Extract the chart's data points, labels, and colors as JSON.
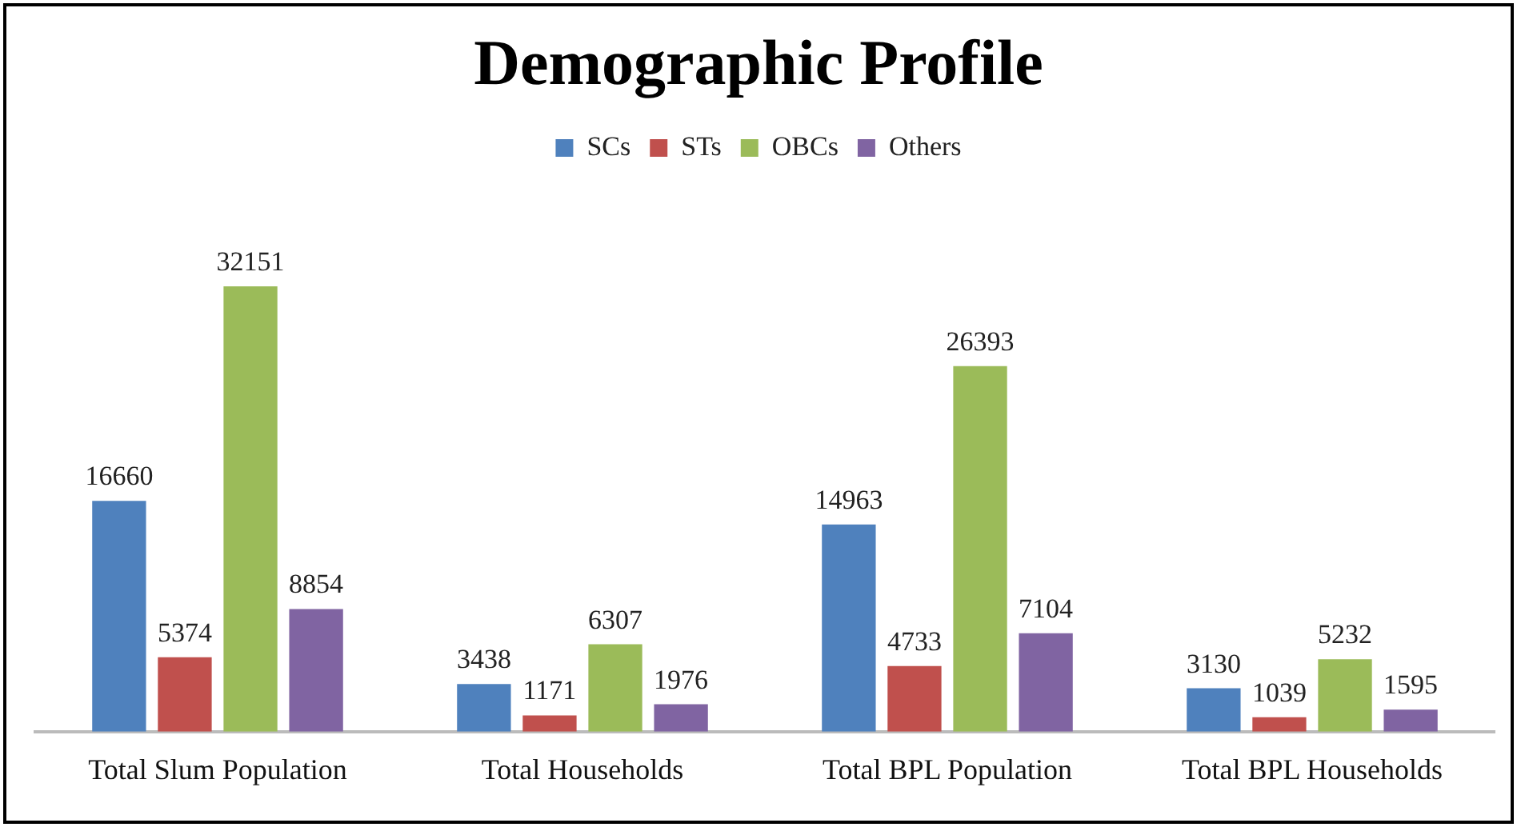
{
  "chart_data": {
    "type": "bar",
    "title": "Demographic Profile",
    "categories": [
      "Total Slum Population",
      "Total Households",
      "Total BPL Population",
      "Total BPL Households"
    ],
    "series": [
      {
        "name": "SCs",
        "color": "#4f81bd",
        "values": [
          16660,
          3438,
          14963,
          3130
        ]
      },
      {
        "name": "STs",
        "color": "#c0504d",
        "values": [
          5374,
          1171,
          4733,
          1039
        ]
      },
      {
        "name": "OBCs",
        "color": "#9bbb59",
        "values": [
          32151,
          6307,
          26393,
          5232
        ]
      },
      {
        "name": "Others",
        "color": "#8064a2",
        "values": [
          8854,
          1976,
          7104,
          1595
        ]
      }
    ],
    "data_labels": true,
    "legend": "top",
    "grid": false
  }
}
